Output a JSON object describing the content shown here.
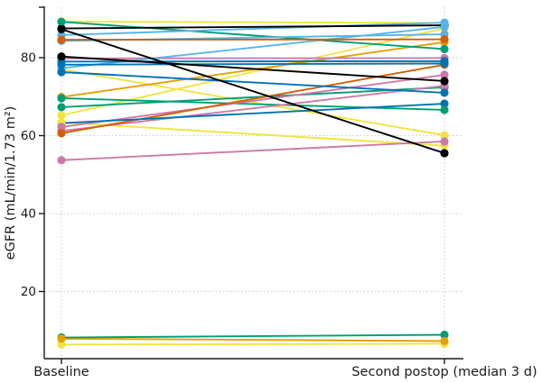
{
  "chart_data": {
    "type": "line",
    "subtype": "paired-slope-chart",
    "title": "",
    "ylabel": "eGFR (mL/min/1.73 m²)",
    "categories": [
      "Baseline",
      "Second postop (median 3 d)"
    ],
    "yticks": [
      20,
      40,
      60,
      80
    ],
    "ylim": [
      0,
      93
    ],
    "grid": "dotted horizontal lines at yticks, dotted vertical lines at each category",
    "legend": "none",
    "palette": {
      "black": "#000000",
      "orange": "#E69F00",
      "skyblue": "#56B4E9",
      "green": "#009E73",
      "yellow": "#F0E442",
      "blue": "#0072B2",
      "vermillion": "#D55E00",
      "pink": "#CC79A7"
    },
    "series": [
      {
        "color": "yellow",
        "baseline": 89.3,
        "postop": 88.9,
        "layer": 0
      },
      {
        "color": "yellow",
        "baseline": 65.2,
        "postop": 87.5,
        "layer": 0
      },
      {
        "color": "yellow",
        "baseline": 77.0,
        "postop": 60.1,
        "layer": 0
      },
      {
        "color": "yellow",
        "baseline": 63.4,
        "postop": 57.4,
        "layer": 1
      },
      {
        "color": "yellow",
        "baseline": 6.4,
        "postop": 6.6,
        "layer": 0
      },
      {
        "color": "orange",
        "baseline": 69.9,
        "postop": 84.0,
        "layer": 0
      },
      {
        "color": "orange",
        "baseline": 7.9,
        "postop": 7.3,
        "layer": 1
      },
      {
        "color": "green",
        "baseline": 89.2,
        "postop": 82.2,
        "layer": 1
      },
      {
        "color": "green",
        "baseline": 69.6,
        "postop": 66.6,
        "layer": 1
      },
      {
        "color": "green",
        "baseline": 67.3,
        "postop": 72.4,
        "layer": 0
      },
      {
        "color": "green",
        "baseline": 8.2,
        "postop": 8.9,
        "layer": 0
      },
      {
        "color": "pink",
        "baseline": 79.8,
        "postop": 79.9,
        "layer": 0
      },
      {
        "color": "pink",
        "baseline": 62.2,
        "postop": 75.6,
        "layer": 1
      },
      {
        "color": "pink",
        "baseline": 61.2,
        "postop": 72.8,
        "layer": 0
      },
      {
        "color": "pink",
        "baseline": 53.7,
        "postop": 58.5,
        "layer": 1
      },
      {
        "color": "skyblue",
        "baseline": 84.3,
        "postop": 86.0,
        "layer": 0
      },
      {
        "color": "skyblue",
        "baseline": 85.8,
        "postop": 89.0,
        "layer": 1
      },
      {
        "color": "skyblue",
        "baseline": 77.3,
        "postop": 87.9,
        "layer": 1
      },
      {
        "color": "vermillion",
        "baseline": 84.6,
        "postop": 84.7,
        "layer": 1
      },
      {
        "color": "vermillion",
        "baseline": 60.6,
        "postop": 78.2,
        "layer": 1
      },
      {
        "color": "blue",
        "baseline": 79.0,
        "postop": 79.1,
        "layer": 1
      },
      {
        "color": "blue",
        "baseline": 78.2,
        "postop": 78.5,
        "layer": 1
      },
      {
        "color": "blue",
        "baseline": 76.3,
        "postop": 71.0,
        "layer": 1
      },
      {
        "color": "blue",
        "baseline": 63.2,
        "postop": 68.2,
        "layer": 0
      },
      {
        "color": "black",
        "baseline": 87.5,
        "postop": 88.3,
        "layer": 0
      },
      {
        "color": "black",
        "baseline": 80.3,
        "postop": 74.0,
        "layer": 1
      },
      {
        "color": "black",
        "baseline": 87.3,
        "postop": 55.5,
        "layer": 1
      }
    ]
  }
}
